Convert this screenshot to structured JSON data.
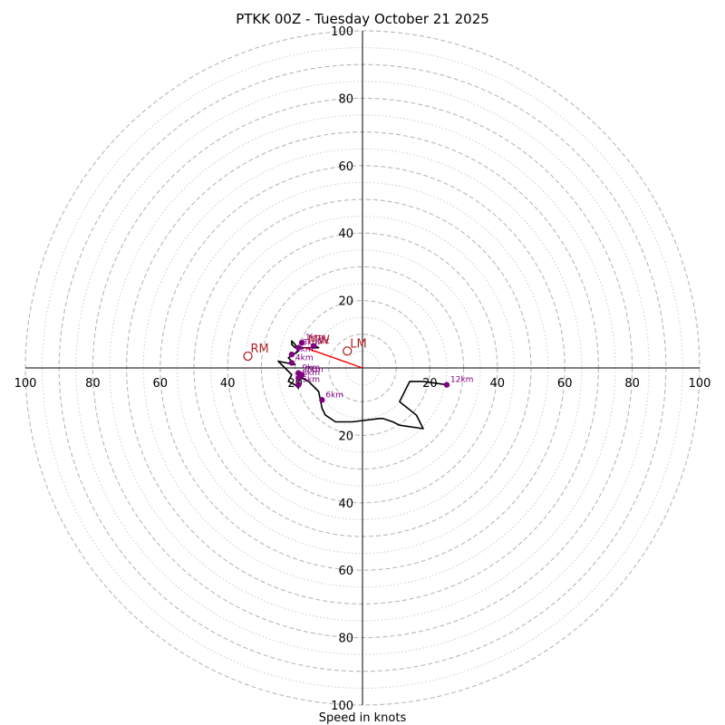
{
  "chart_data": {
    "type": "line",
    "subtype": "hodograph",
    "title": "PTKK 00Z - Tuesday October 21 2025",
    "xlabel": "Speed in knots",
    "ylabel": "",
    "xlim": [
      -100,
      100
    ],
    "ylim": [
      -100,
      100
    ],
    "grid": true,
    "ring_speeds_dashed": [
      10,
      20,
      30,
      40,
      50,
      60,
      70,
      80,
      90,
      100
    ],
    "ring_speeds_dotted": [
      5,
      15,
      25,
      35,
      45,
      55,
      65,
      75,
      85,
      95
    ],
    "x_tick_labels": [
      "100",
      "80",
      "60",
      "40",
      "20",
      "",
      "20",
      "40",
      "60",
      "80",
      "100"
    ],
    "x_tick_values": [
      -100,
      -80,
      -60,
      -40,
      -20,
      0,
      20,
      40,
      60,
      80,
      100
    ],
    "y_tick_labels_up": [
      "20",
      "40",
      "60",
      "80",
      "100"
    ],
    "y_tick_labels_down": [
      "20",
      "40",
      "60",
      "80",
      "100"
    ],
    "y_tick_values": [
      20,
      40,
      60,
      80,
      100
    ],
    "hodograph_trace": {
      "name": "wind profile",
      "color": "#000000",
      "u": [
        -15,
        -13,
        -20,
        -21,
        -21,
        -20,
        -19,
        -22,
        -20,
        -25,
        -23,
        -21,
        -22,
        -20,
        -19,
        -19,
        -18,
        -16,
        -13,
        -12,
        -11,
        -8,
        -3,
        5,
        6,
        9,
        11,
        18,
        16,
        11,
        14,
        18,
        25
      ],
      "v": [
        7,
        6,
        6,
        7,
        8,
        7,
        5,
        3,
        1,
        2,
        0,
        -2,
        -4,
        -5,
        -6,
        -4,
        -3,
        -4,
        -7,
        -12,
        -14,
        -16,
        -16,
        -15,
        -15,
        -16,
        -17,
        -18,
        -14,
        -10,
        -4,
        -4,
        -5
      ]
    },
    "height_markers": {
      "color": "#800080",
      "points": [
        {
          "label": "1km",
          "u": -18,
          "v": 7.5
        },
        {
          "label": "Sfc",
          "u": -14.5,
          "v": 6.5
        },
        {
          "label": "3km",
          "u": -19,
          "v": 6
        },
        {
          "label": "2km",
          "u": -21,
          "v": 4
        },
        {
          "label": "4km",
          "u": -21,
          "v": 1.5
        },
        {
          "label": "9km",
          "u": -19,
          "v": -1.5
        },
        {
          "label": "7km",
          "u": -18,
          "v": -2
        },
        {
          "label": "8km",
          "u": -19,
          "v": -3
        },
        {
          "label": "5km",
          "u": -19,
          "v": -5
        },
        {
          "label": "6km",
          "u": -12,
          "v": -9.5
        },
        {
          "label": "12km",
          "u": 25,
          "v": -5
        }
      ]
    },
    "storm_motion": {
      "color": "#b22222",
      "markers": [
        {
          "label": "RM",
          "u": -34,
          "v": 3.5
        },
        {
          "label": "LM",
          "u": -4.5,
          "v": 5
        },
        {
          "label": "MW",
          "u": -17,
          "v": 6
        }
      ],
      "shear_vector": {
        "from_u": -17,
        "from_v": 6,
        "to_u": 0,
        "to_v": 0,
        "color": "#ff0000"
      }
    }
  }
}
